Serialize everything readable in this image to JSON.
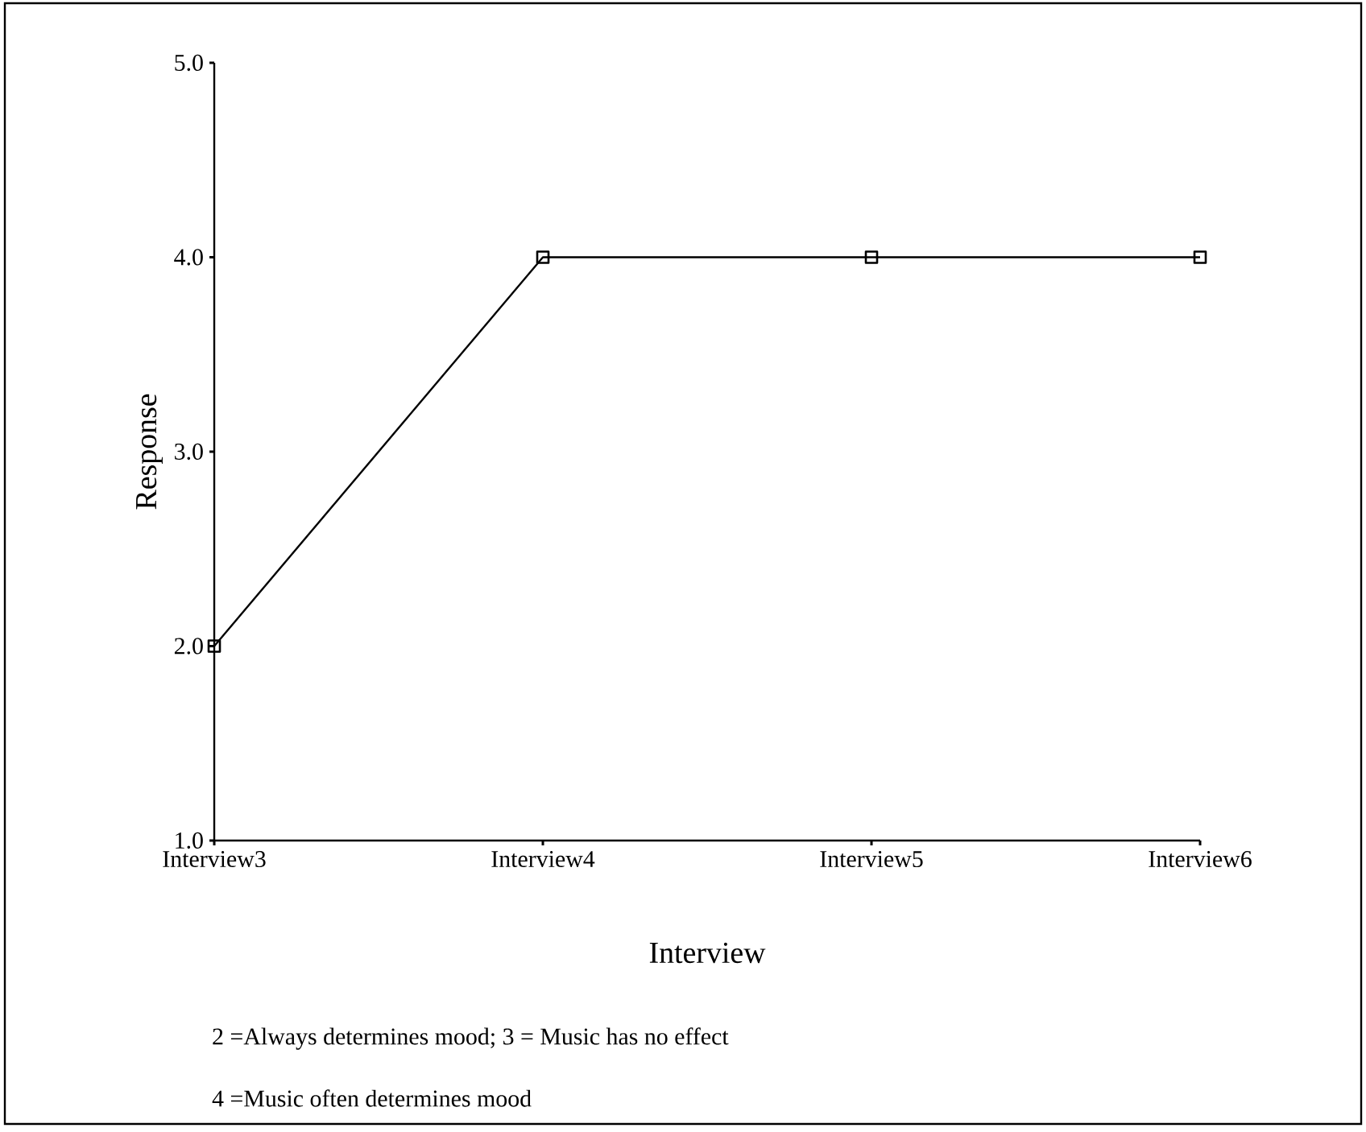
{
  "chart_data": {
    "type": "line",
    "xlabel": "Interview",
    "ylabel": "Response",
    "categories": [
      "Interview3",
      "Interview4",
      "Interview5",
      "Interview6"
    ],
    "values": [
      2.0,
      4.0,
      4.0,
      4.0
    ],
    "color": "#000000",
    "marker": "square",
    "ylim": [
      1,
      5
    ],
    "yticks": [
      {
        "value": 1,
        "label": "1.0"
      },
      {
        "value": 2,
        "label": "2.0"
      },
      {
        "value": 3,
        "label": "3.0"
      },
      {
        "value": 4,
        "label": "4.0"
      },
      {
        "value": 5,
        "label": "5.0"
      }
    ],
    "grid": false,
    "annotations": [
      "2 =Always determines mood; 3 = Music has no effect",
      "4 =Music often determines mood"
    ]
  }
}
